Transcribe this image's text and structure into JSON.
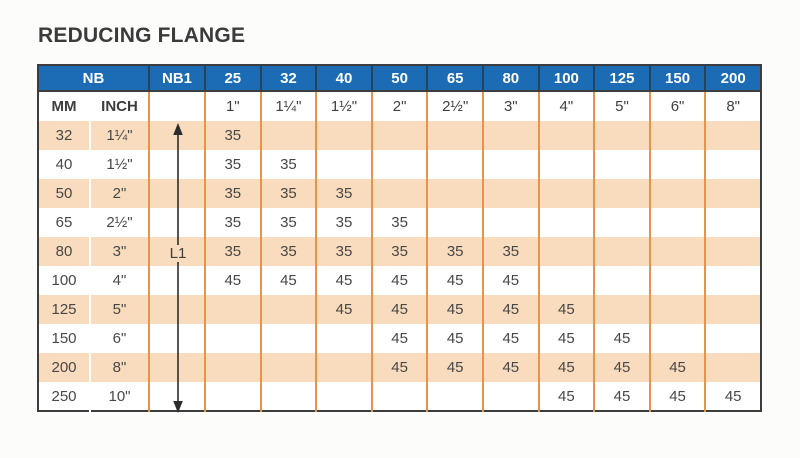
{
  "title": "REDUCING FLANGE",
  "colors": {
    "blue": "#1b6cb4",
    "blue_sep": "#27435c",
    "orange": "#f9dcbe",
    "grid": "#e8924a",
    "dark": "#3d3d3d",
    "text": "#474747",
    "title": "#3b3b3b",
    "bg": "#fcfcfb"
  },
  "table": {
    "nb_header": "NB",
    "nb1_header": "NB1",
    "size_columns": [
      "25",
      "32",
      "40",
      "50",
      "65",
      "80",
      "100",
      "125",
      "150",
      "200"
    ],
    "sub": {
      "mm": "MM",
      "inch": "INCH",
      "nb1": "",
      "sizes": [
        "1\"",
        "1¼\"",
        "1½\"",
        "2\"",
        "2½\"",
        "3\"",
        "4\"",
        "5\"",
        "6\"",
        "8\""
      ]
    },
    "arrow_label": "L1",
    "rows": [
      {
        "mm": "32",
        "inch": "1¼\"",
        "values": [
          "35",
          "",
          "",
          "",
          "",
          "",
          "",
          "",
          "",
          ""
        ]
      },
      {
        "mm": "40",
        "inch": "1½\"",
        "values": [
          "35",
          "35",
          "",
          "",
          "",
          "",
          "",
          "",
          "",
          ""
        ]
      },
      {
        "mm": "50",
        "inch": "2\"",
        "values": [
          "35",
          "35",
          "35",
          "",
          "",
          "",
          "",
          "",
          "",
          ""
        ]
      },
      {
        "mm": "65",
        "inch": "2½\"",
        "values": [
          "35",
          "35",
          "35",
          "35",
          "",
          "",
          "",
          "",
          "",
          ""
        ]
      },
      {
        "mm": "80",
        "inch": "3\"",
        "values": [
          "35",
          "35",
          "35",
          "35",
          "35",
          "35",
          "",
          "",
          "",
          ""
        ]
      },
      {
        "mm": "100",
        "inch": "4\"",
        "values": [
          "45",
          "45",
          "45",
          "45",
          "45",
          "45",
          "",
          "",
          "",
          ""
        ]
      },
      {
        "mm": "125",
        "inch": "5\"",
        "values": [
          "",
          "",
          "45",
          "45",
          "45",
          "45",
          "45",
          "",
          "",
          ""
        ]
      },
      {
        "mm": "150",
        "inch": "6\"",
        "values": [
          "",
          "",
          "",
          "45",
          "45",
          "45",
          "45",
          "45",
          "",
          ""
        ]
      },
      {
        "mm": "200",
        "inch": "8\"",
        "values": [
          "",
          "",
          "",
          "45",
          "45",
          "45",
          "45",
          "45",
          "45",
          ""
        ]
      },
      {
        "mm": "250",
        "inch": "10\"",
        "values": [
          "",
          "",
          "",
          "",
          "",
          "",
          "45",
          "45",
          "45",
          "45"
        ]
      }
    ]
  }
}
